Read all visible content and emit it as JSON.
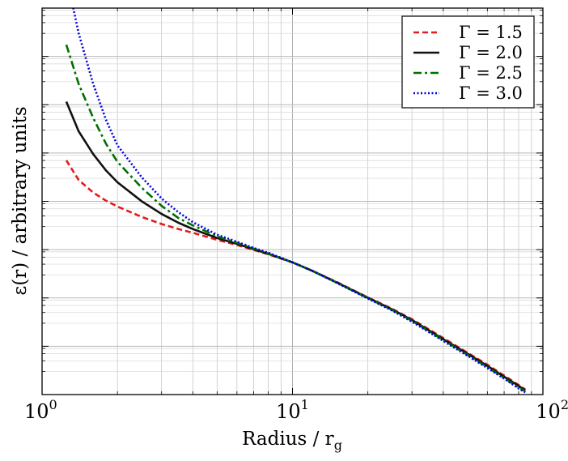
{
  "chart_data": {
    "type": "line",
    "title": "",
    "xlabel": "Radius / r",
    "xlabel_sub": "g",
    "ylabel": "ε(r) / arbitrary units",
    "xscale": "log",
    "yscale": "log",
    "xlim": [
      1,
      100
    ],
    "ylim": [
      0.003,
      0.003162
    ],
    "grid": true,
    "legend_position": "top-right",
    "x_ticks": [
      {
        "value": 1,
        "base": "10",
        "exp": "0"
      },
      {
        "value": 10,
        "base": "10",
        "exp": "1"
      },
      {
        "value": 100,
        "base": "10",
        "exp": "2"
      }
    ],
    "x": [
      1.25,
      1.4,
      1.6,
      1.8,
      2.0,
      2.5,
      3.0,
      3.5,
      4.0,
      5.0,
      6.0,
      7.0,
      8.0,
      10.0,
      12.0,
      15.0,
      20.0,
      25.0,
      30.0,
      40.0,
      50.0,
      60.0,
      70.0,
      80.0,
      85.0
    ],
    "series": [
      {
        "name": "Γ = 1.5",
        "color": "#e41a1c",
        "dash": "dashed",
        "values": [
          10,
          5.0,
          3.2,
          2.4,
          1.95,
          1.35,
          1.05,
          0.88,
          0.77,
          0.6,
          0.5,
          0.42,
          0.36,
          0.27,
          0.2,
          0.135,
          0.078,
          0.052,
          0.036,
          0.0185,
          0.011,
          0.0072,
          0.0049,
          0.0035,
          0.003
        ]
      },
      {
        "name": "Γ = 2.0",
        "color": "#111111",
        "dash": "solid",
        "values": [
          80,
          28,
          12.5,
          7.0,
          4.6,
          2.35,
          1.5,
          1.1,
          0.88,
          0.64,
          0.52,
          0.43,
          0.365,
          0.27,
          0.2,
          0.133,
          0.077,
          0.051,
          0.035,
          0.0178,
          0.0106,
          0.0069,
          0.0047,
          0.0034,
          0.0029
        ]
      },
      {
        "name": "Γ = 2.5",
        "color": "#007000",
        "dash": "dashdot",
        "values": [
          600,
          150,
          45,
          18,
          9.5,
          3.8,
          2.0,
          1.3,
          1.0,
          0.68,
          0.54,
          0.44,
          0.37,
          0.27,
          0.2,
          0.132,
          0.076,
          0.05,
          0.034,
          0.0172,
          0.0102,
          0.0066,
          0.0045,
          0.0032,
          0.0028
        ]
      },
      {
        "name": "Γ = 3.0",
        "color": "#0000dd",
        "dash": "dotted",
        "values": [
          30000,
          900,
          150,
          42,
          17,
          5.5,
          2.6,
          1.6,
          1.12,
          0.72,
          0.56,
          0.45,
          0.38,
          0.27,
          0.2,
          0.131,
          0.075,
          0.049,
          0.033,
          0.0167,
          0.0099,
          0.0064,
          0.0044,
          0.0031,
          0.0027
        ]
      }
    ]
  }
}
